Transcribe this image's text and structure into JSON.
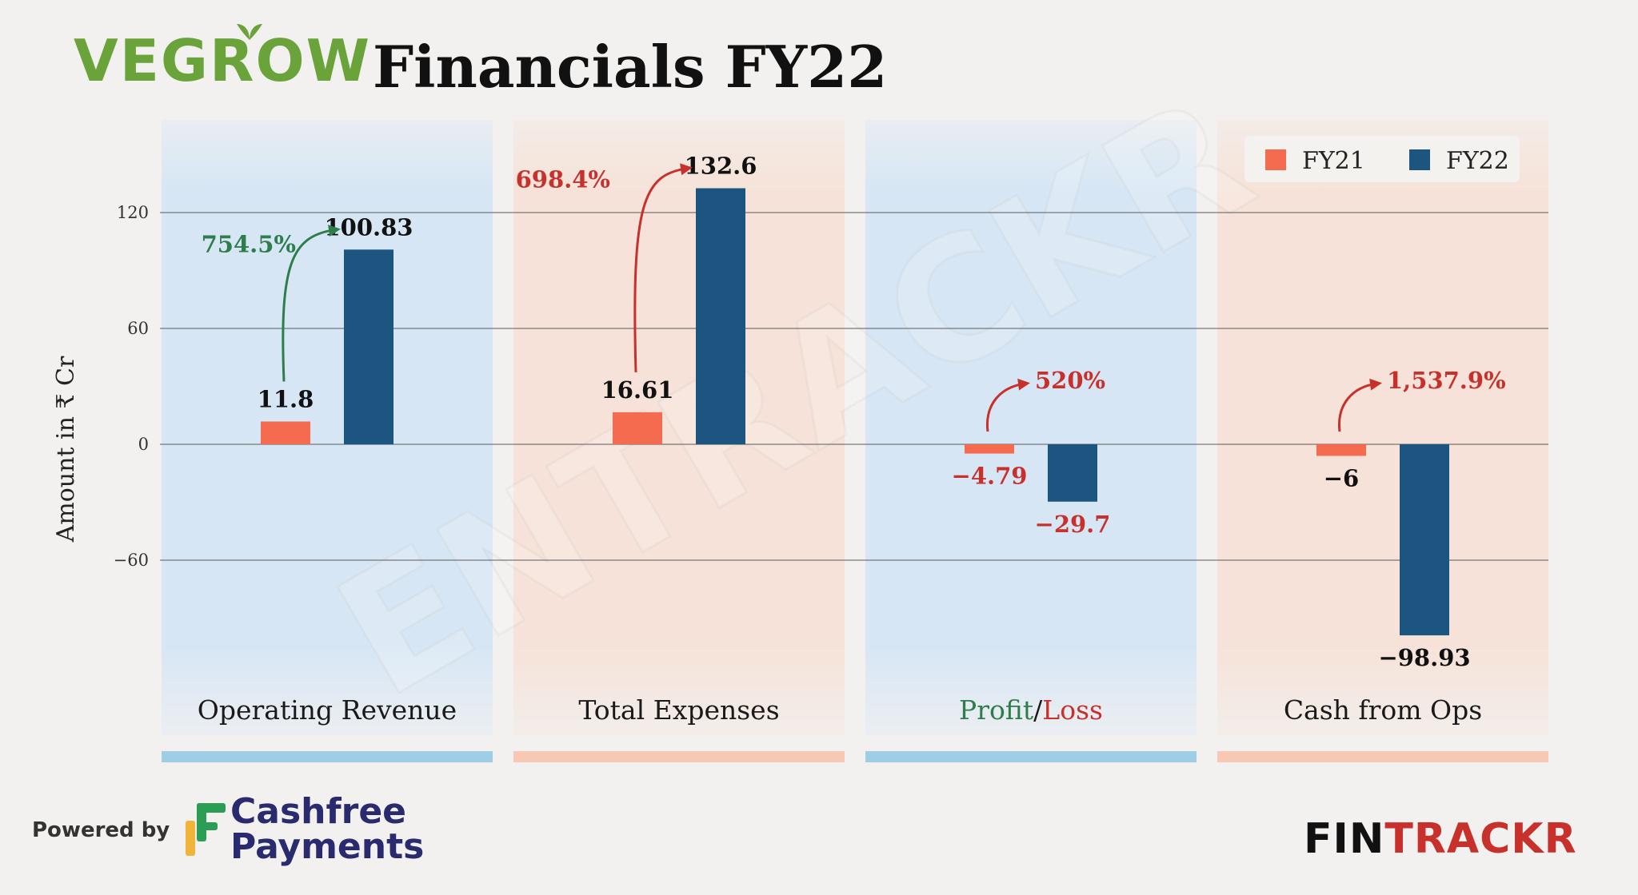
{
  "brand": {
    "logo_text": "VEGROW",
    "title": "Financials FY22",
    "powered_by": "Powered by",
    "sponsor_line1": "Cashfree",
    "sponsor_line2": "Payments",
    "watermark": "ENTRACKR",
    "footer_brand_a": "FIN",
    "footer_brand_b": "TRACKR"
  },
  "colors": {
    "fy21": "#f46b50",
    "fy22": "#1c557f",
    "growth_positive": "#2e7d4a",
    "growth_negative": "#c8312b",
    "panel_blue": "#d6e6f5",
    "panel_peach": "#f6e2d8",
    "bar_blue": "#9fcde6",
    "bar_peach": "#f7c8b3"
  },
  "chart_data": {
    "type": "bar",
    "ylabel": "Amount in ₹ Cr",
    "ylim": [
      -120,
      150
    ],
    "yticks": [
      120,
      60,
      0,
      -60
    ],
    "legend_position": "top-right",
    "grid": true,
    "categories": [
      "Operating Revenue",
      "Total Expenses",
      "Profit/Loss",
      "Cash from Ops"
    ],
    "series": [
      {
        "name": "FY21",
        "values": [
          11.8,
          16.61,
          -4.79,
          -6
        ]
      },
      {
        "name": "FY22",
        "values": [
          100.83,
          132.6,
          -29.7,
          -98.93
        ]
      }
    ],
    "value_labels": {
      "FY21": [
        "11.8",
        "16.61",
        "-4.79",
        "-6"
      ],
      "FY22": [
        "100.83",
        "132.6",
        "-29.7",
        "-98.93"
      ]
    },
    "growth_labels": [
      "754.5%",
      "698.4%",
      "520%",
      "1,537.9%"
    ],
    "category_label_parts": {
      "Profit/Loss": [
        "Profit",
        "/",
        "Loss"
      ]
    }
  }
}
